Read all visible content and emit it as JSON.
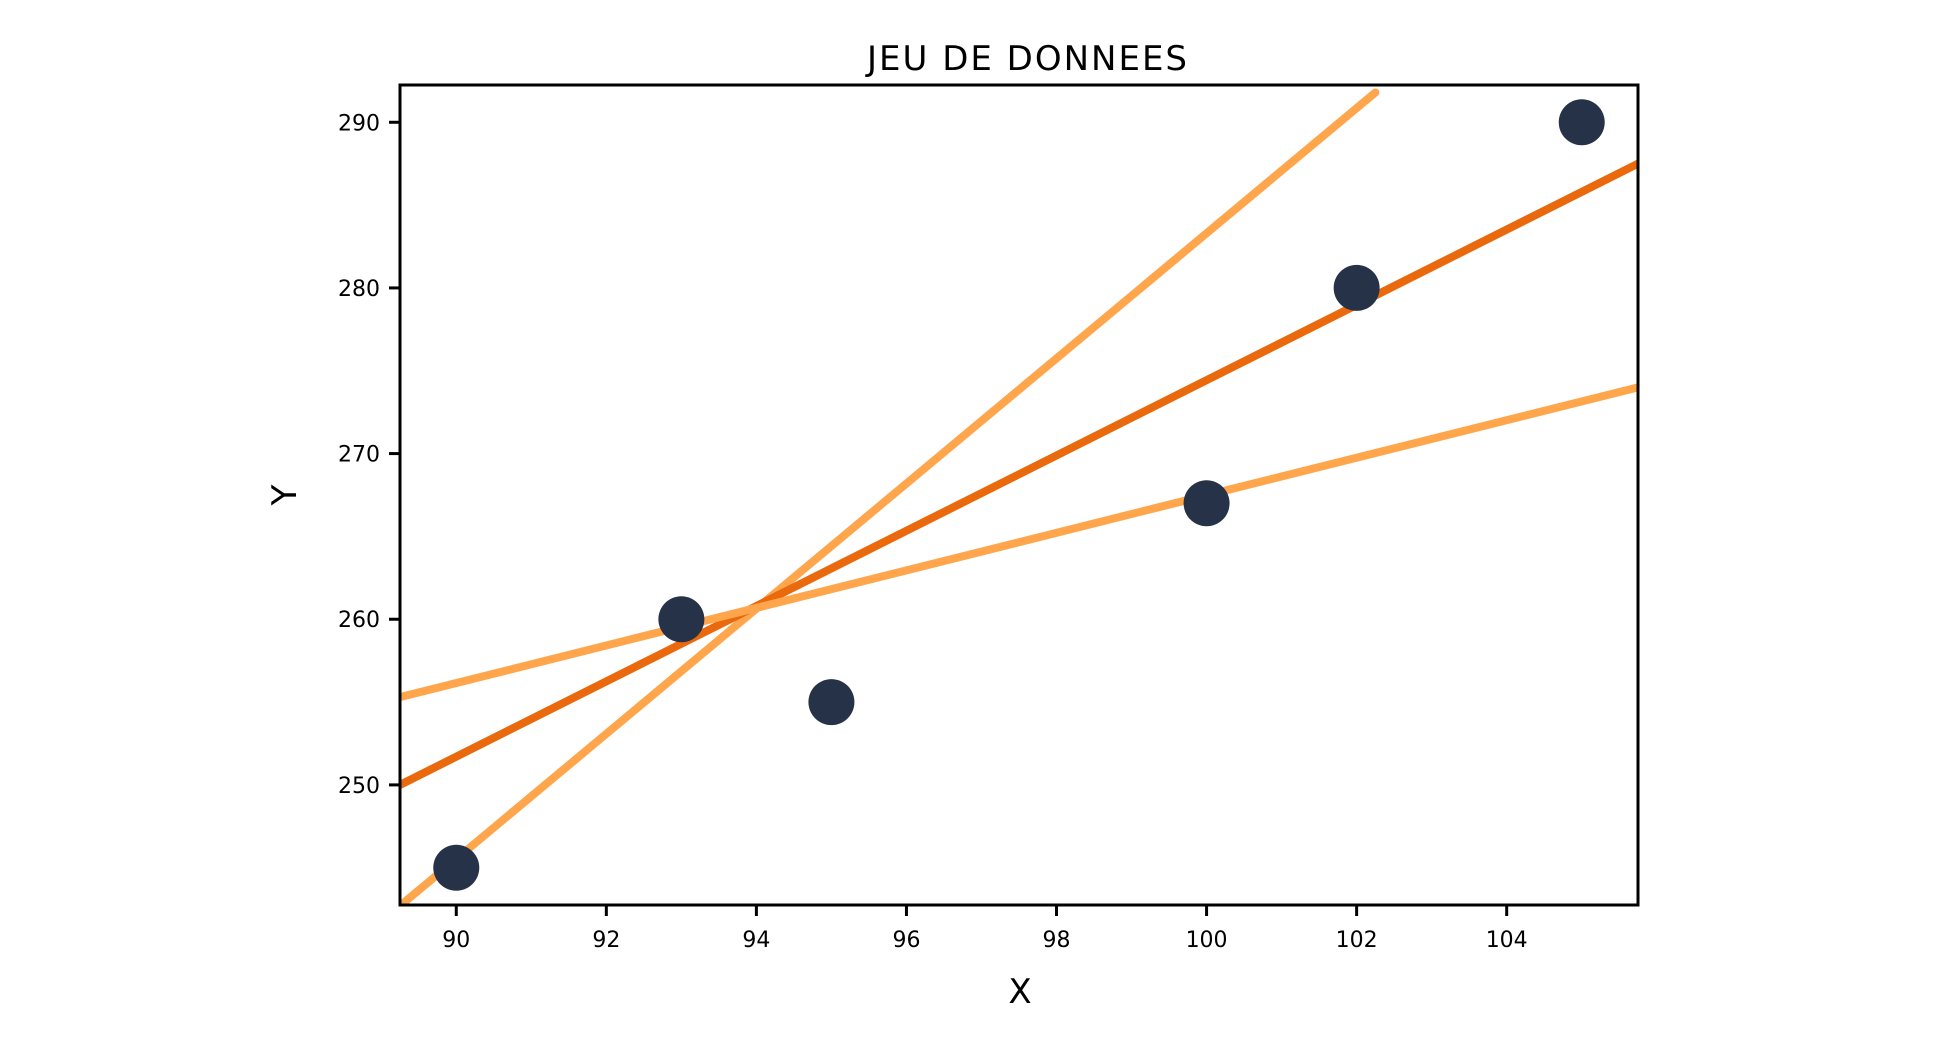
{
  "chart_data": {
    "type": "scatter",
    "title": "JEU DE DONNEES",
    "xlabel": "X",
    "ylabel": "Y",
    "xlim": [
      89.25,
      105.75
    ],
    "ylim": [
      242.75,
      292.25
    ],
    "xticks": [
      90,
      92,
      94,
      96,
      98,
      100,
      102,
      104
    ],
    "yticks": [
      250,
      260,
      270,
      280,
      290
    ],
    "grid": false,
    "series": [
      {
        "type": "scatter",
        "color": "#263248",
        "x": [
          90,
          93,
          95,
          100,
          102,
          105
        ],
        "y": [
          245,
          260,
          255,
          267,
          280,
          290
        ]
      }
    ],
    "lines": [
      {
        "color": "#FFA64D",
        "points": [
          [
            89.25,
            242.7
          ],
          [
            102.25,
            291.8
          ]
        ]
      },
      {
        "color": "#E9690C",
        "points": [
          [
            89.25,
            250.0
          ],
          [
            105.75,
            287.5
          ]
        ]
      },
      {
        "color": "#FFA64D",
        "points": [
          [
            89.25,
            255.3
          ],
          [
            105.75,
            274.0
          ]
        ]
      }
    ]
  }
}
